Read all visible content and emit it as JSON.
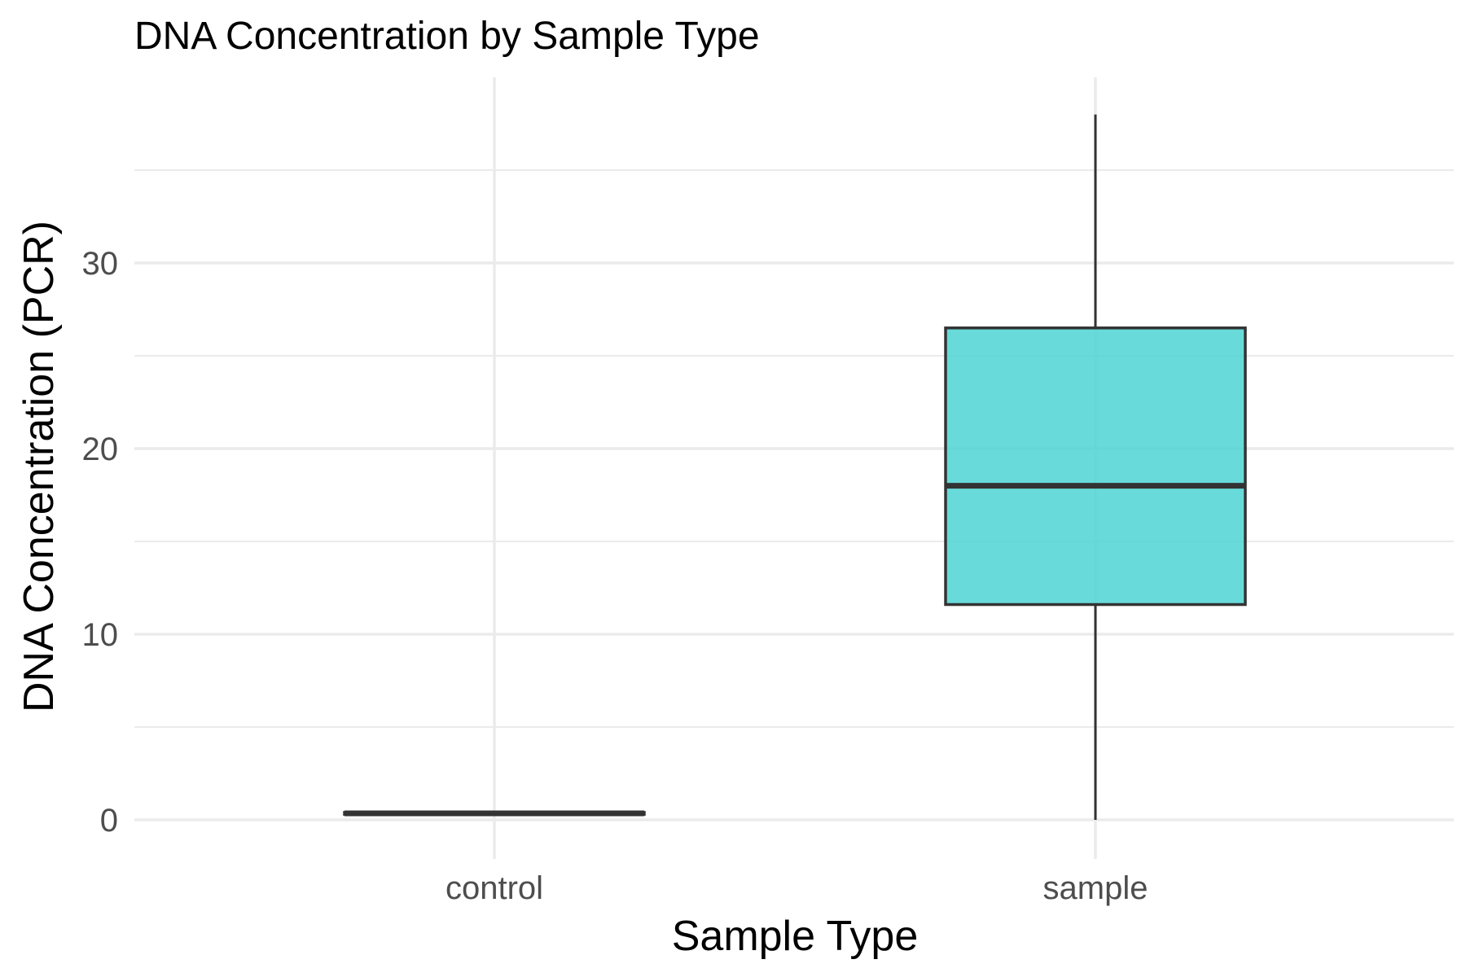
{
  "chart_data": {
    "type": "box",
    "title": "DNA Concentration by Sample Type",
    "xlabel": "Sample Type",
    "ylabel": "DNA Concentration (PCR)",
    "categories": [
      "control",
      "sample"
    ],
    "boxes": [
      {
        "category": "control",
        "min": 0.3,
        "q1": 0.3,
        "median": 0.35,
        "q3": 0.4,
        "max": 0.4
      },
      {
        "category": "sample",
        "min": 0.0,
        "q1": 11.6,
        "median": 18.0,
        "q3": 26.5,
        "max": 38.0
      }
    ],
    "ylim": [
      -2,
      39.5
    ],
    "yticks": [
      0,
      10,
      20,
      30
    ],
    "yticks_minor": [
      5,
      15,
      25,
      35
    ],
    "grid": true,
    "fill_color": "#4dd4d4",
    "line_color": "#333333",
    "grid_color": "#ebebeb"
  }
}
